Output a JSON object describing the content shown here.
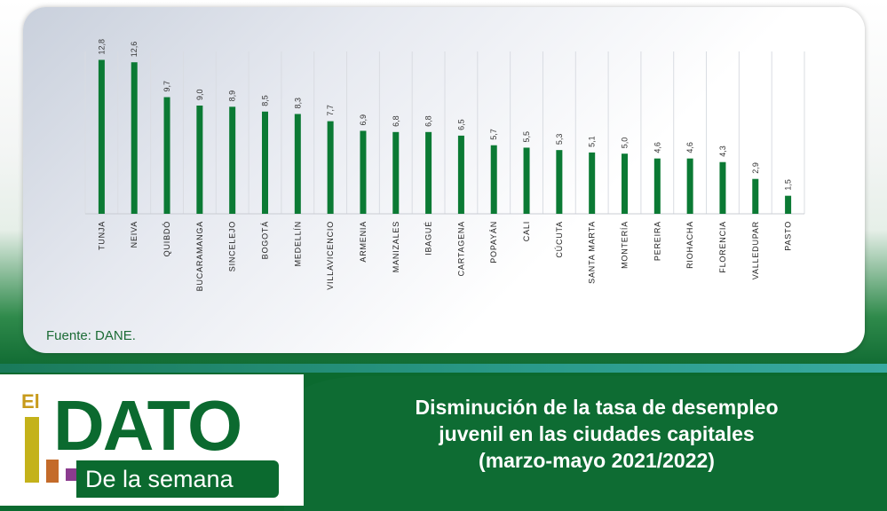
{
  "chart_data": {
    "type": "bar",
    "categories": [
      "TUNJA",
      "NEIVA",
      "QUIBDÓ",
      "BUCARAMANGA",
      "SINCELEJO",
      "BOGOTÁ",
      "MEDELLÍN",
      "VILLAVICENCIO",
      "ARMENIA",
      "MANIZALES",
      "IBAGUÉ",
      "CARTAGENA",
      "POPAYÁN",
      "CALI",
      "CÚCUTA",
      "SANTA MARTA",
      "MONTERÍA",
      "PEREIRA",
      "RIOHACHA",
      "FLORENCIA",
      "VALLEDUPAR",
      "PASTO"
    ],
    "values": [
      12.8,
      12.6,
      9.7,
      9.0,
      8.9,
      8.5,
      8.3,
      7.7,
      6.9,
      6.8,
      6.8,
      6.5,
      5.7,
      5.5,
      5.3,
      5.1,
      5.0,
      4.6,
      4.6,
      4.3,
      2.9,
      1.5
    ],
    "value_labels": [
      "12,8",
      "12,6",
      "9,7",
      "9,0",
      "8,9",
      "8,5",
      "8,3",
      "7,7",
      "6,9",
      "6,8",
      "6,8",
      "6,5",
      "5,7",
      "5,5",
      "5,3",
      "5,1",
      "5,0",
      "4,6",
      "4,6",
      "4,3",
      "2,9",
      "1,5"
    ],
    "ylim": [
      0,
      13.5
    ],
    "grid": "vertical",
    "bar_color": "#0b7a34",
    "xlabel": "",
    "ylabel": ""
  },
  "source": "Fuente: DANE.",
  "logo": {
    "el": "El",
    "dato": "DATO",
    "subtitle": "De la semana"
  },
  "headline": {
    "line1": "Disminución de la tasa de desempleo",
    "line2": "juvenil en las ciudades capitales",
    "line3": "(marzo-mayo 2021/2022)"
  },
  "colors": {
    "brand_green": "#0b6a2f",
    "bar_green": "#0b7a34",
    "logo_gold": "#c79a1b",
    "logo_orange": "#c46b2a",
    "logo_purple": "#8b3c8f"
  }
}
